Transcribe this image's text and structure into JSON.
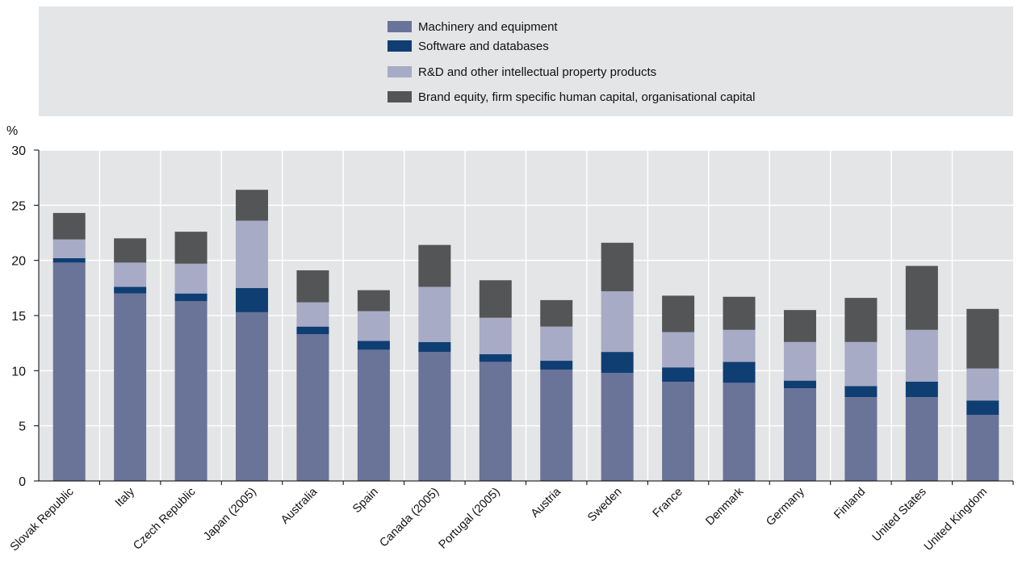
{
  "chart_data": {
    "type": "bar",
    "stacked": true,
    "ylabel": "%",
    "ylim": [
      0,
      30
    ],
    "yticks": [
      0,
      5,
      10,
      15,
      20,
      25,
      30
    ],
    "grid": true,
    "legend_position": "top",
    "categories": [
      "Slovak Republic",
      "Italy",
      "Czech Republic",
      "Japan (2005)",
      "Australia",
      "Spain",
      "Canada (2005)",
      "Portugal (2005)",
      "Austria",
      "Sweden",
      "France",
      "Denmark",
      "Germany",
      "Finland",
      "United States",
      "United Kingdom"
    ],
    "series": [
      {
        "name": "Machinery and equipment",
        "color": "#6a7398",
        "values": [
          19.8,
          17.0,
          16.3,
          15.3,
          13.3,
          11.9,
          11.7,
          10.8,
          10.1,
          9.8,
          9.0,
          8.9,
          8.4,
          7.6,
          7.6,
          6.0
        ]
      },
      {
        "name": "Software and databases",
        "color": "#0f3e73",
        "values": [
          0.4,
          0.6,
          0.7,
          2.2,
          0.7,
          0.8,
          0.9,
          0.7,
          0.8,
          1.9,
          1.3,
          1.9,
          0.7,
          1.0,
          1.4,
          1.3
        ]
      },
      {
        "name": "R&D and other intellectual property products",
        "color": "#a7abc6",
        "values": [
          1.7,
          2.2,
          2.7,
          6.1,
          2.2,
          2.7,
          5.0,
          3.3,
          3.1,
          5.5,
          3.2,
          2.9,
          3.5,
          4.0,
          4.7,
          2.9
        ]
      },
      {
        "name": "Brand equity, firm specific human capital, organisational capital",
        "color": "#545556",
        "values": [
          2.4,
          2.2,
          2.9,
          2.8,
          2.9,
          1.9,
          3.8,
          3.4,
          2.4,
          4.4,
          3.3,
          3.0,
          2.9,
          4.0,
          5.8,
          5.4
        ]
      }
    ]
  }
}
